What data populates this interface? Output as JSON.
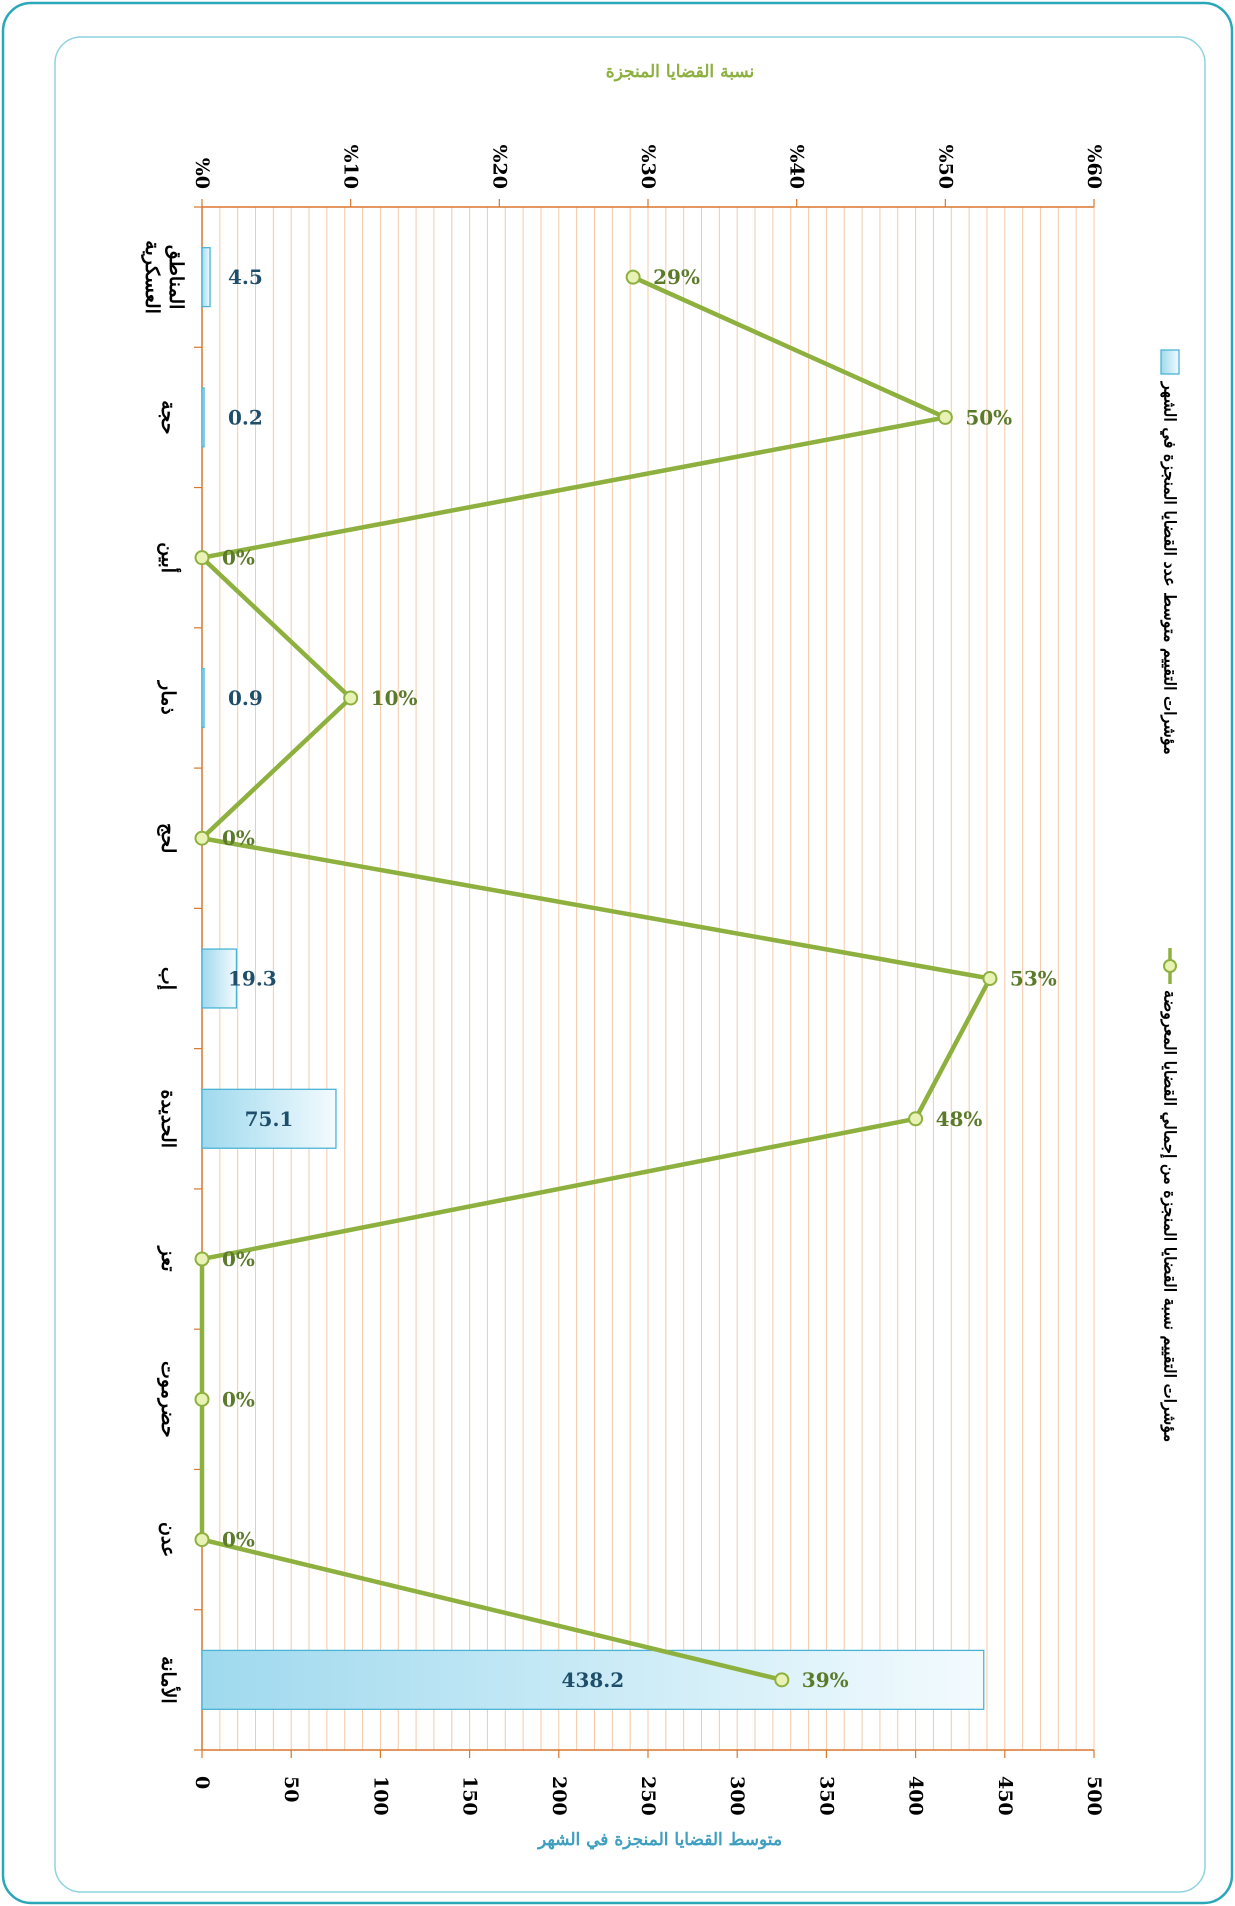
{
  "chart_data": {
    "type": "bar+line",
    "orientation": "rotated-90",
    "categories": [
      "المناطق العسكرية",
      "حجة",
      "أبين",
      "ذمار",
      "لحج",
      "إب",
      "الحديدة",
      "تعز",
      "حضرموت",
      "عدن",
      "الأمانة"
    ],
    "series": [
      {
        "name": "مؤشرات التقييم متوسط عدد القضايا المنجزة في الشهر",
        "type": "bar",
        "axis": "primary",
        "values": [
          4.5,
          0.2,
          0,
          0.9,
          0,
          19.3,
          75.1,
          0,
          0,
          0,
          438.2
        ],
        "labels": [
          "4.5",
          "0.2",
          "",
          "0.9",
          "",
          "19.3",
          "75.1",
          "",
          "",
          "",
          "438.2"
        ]
      },
      {
        "name": "مؤشرات التقييم نسبة القضايا المنجزة من إجمالي القضايا المعروضة",
        "type": "line",
        "axis": "secondary",
        "values": [
          29,
          50,
          0,
          10,
          0,
          53,
          48,
          0,
          0,
          0,
          39
        ],
        "labels": [
          "29%",
          "50%",
          "0%",
          "10%",
          "0%",
          "53%",
          "48%",
          "0%",
          "0%",
          "0%",
          "39%"
        ]
      }
    ],
    "primary_axis": {
      "title": "متوسط القضايا المنجزة في الشهر",
      "range": [
        0,
        500
      ],
      "ticks": [
        "0",
        "50",
        "100",
        "150",
        "200",
        "250",
        "300",
        "350",
        "400",
        "450",
        "500"
      ]
    },
    "secondary_axis": {
      "title": "نسبة القضايا المنجزة",
      "range": [
        0,
        60
      ],
      "ticks": [
        "%0",
        "%10",
        "%20",
        "%30",
        "%40",
        "%50",
        "%60"
      ]
    },
    "grid": true,
    "legend_position": "right",
    "colors": {
      "bar_fill_start": "#9fd9ee",
      "bar_fill_end": "#f3fbfe",
      "bar_stroke": "#4bb3d6",
      "line": "#8db03f",
      "marker_fill": "#e8f2b4",
      "bar_label": "#1f4e6b",
      "line_label": "#5b7a2a",
      "grid": "#f5c9a8",
      "axis": "#d9772b",
      "frame": "#2aa7b8",
      "primary_axis_title": "#3f9fc0",
      "secondary_axis_title": "#8db03f"
    }
  }
}
